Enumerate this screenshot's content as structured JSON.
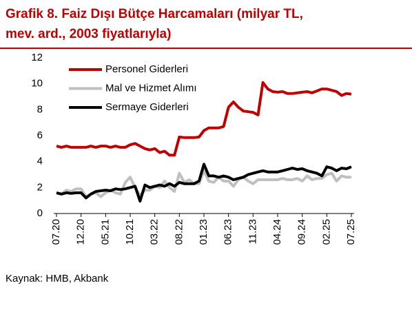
{
  "chart_data": {
    "type": "line",
    "title": [
      "Grafik 8. Faiz Dışı Bütçe Harcamaları (milyar TL,",
      "mev. ard., 2003 fiyatlarıyla)"
    ],
    "source": "Kaynak: HMB, Akbank",
    "categories": [
      "07.20",
      null,
      null,
      null,
      null,
      "12.20",
      null,
      null,
      null,
      null,
      "05.21",
      null,
      null,
      null,
      null,
      "10.21",
      null,
      null,
      null,
      null,
      "03.22",
      null,
      null,
      null,
      null,
      "08.22",
      null,
      null,
      null,
      null,
      "01.23",
      null,
      null,
      null,
      null,
      "06.23",
      null,
      null,
      null,
      null,
      "11.23",
      null,
      null,
      null,
      null,
      "04.24",
      null,
      null,
      null,
      null,
      "09.24",
      null,
      null,
      null,
      null,
      "02.25",
      null,
      null,
      null,
      null,
      "07.25"
    ],
    "ylim": [
      0,
      12
    ],
    "yticks": [
      0,
      2,
      4,
      6,
      8,
      10,
      12
    ],
    "grid": false,
    "legend": "top-left",
    "series": [
      {
        "name": "Personel Giderleri",
        "color": "#c00000",
        "values": [
          5.2,
          5.1,
          5.2,
          5.1,
          5.1,
          5.1,
          5.1,
          5.2,
          5.1,
          5.2,
          5.2,
          5.1,
          5.2,
          5.1,
          5.1,
          5.3,
          5.4,
          5.2,
          5.0,
          4.9,
          5.0,
          4.7,
          4.8,
          4.5,
          4.5,
          5.9,
          5.85,
          5.85,
          5.85,
          5.9,
          6.4,
          6.6,
          6.6,
          6.6,
          6.7,
          8.2,
          8.6,
          8.2,
          7.9,
          7.85,
          7.8,
          7.6,
          10.1,
          9.6,
          9.4,
          9.35,
          9.4,
          9.25,
          9.25,
          9.3,
          9.35,
          9.4,
          9.3,
          9.45,
          9.6,
          9.6,
          9.5,
          9.4,
          9.1,
          9.25,
          9.2
        ]
      },
      {
        "name": "Mal ve Hizmet Alımı",
        "color": "#bfbfbf",
        "values": [
          1.6,
          1.5,
          1.8,
          1.7,
          1.9,
          1.9,
          1.3,
          1.5,
          1.6,
          1.3,
          1.6,
          1.8,
          1.6,
          1.5,
          2.4,
          2.8,
          2.0,
          1.4,
          1.8,
          1.8,
          2.1,
          2.0,
          2.5,
          2.0,
          1.7,
          3.1,
          2.4,
          2.6,
          2.3,
          2.3,
          3.3,
          2.5,
          2.4,
          2.8,
          2.5,
          2.5,
          2.1,
          2.6,
          2.8,
          2.5,
          2.3,
          2.6,
          2.6,
          2.6,
          2.6,
          2.6,
          2.7,
          2.6,
          2.6,
          2.7,
          2.5,
          2.9,
          2.6,
          2.7,
          2.7,
          3.0,
          3.1,
          2.5,
          2.9,
          2.8,
          2.8
        ]
      },
      {
        "name": "Sermaye Giderleri",
        "color": "#000000",
        "values": [
          1.6,
          1.5,
          1.6,
          1.55,
          1.6,
          1.6,
          1.2,
          1.5,
          1.7,
          1.75,
          1.8,
          1.75,
          1.9,
          1.85,
          1.9,
          2.0,
          2.1,
          0.95,
          2.2,
          2.0,
          2.1,
          2.2,
          2.1,
          2.3,
          2.1,
          2.4,
          2.3,
          2.3,
          2.3,
          2.5,
          3.8,
          2.9,
          2.9,
          2.8,
          2.9,
          2.8,
          2.6,
          2.7,
          2.8,
          3.0,
          3.1,
          3.2,
          3.3,
          3.2,
          3.2,
          3.2,
          3.3,
          3.4,
          3.5,
          3.4,
          3.45,
          3.3,
          3.2,
          3.1,
          2.9,
          3.6,
          3.5,
          3.3,
          3.5,
          3.45,
          3.6
        ]
      }
    ]
  }
}
